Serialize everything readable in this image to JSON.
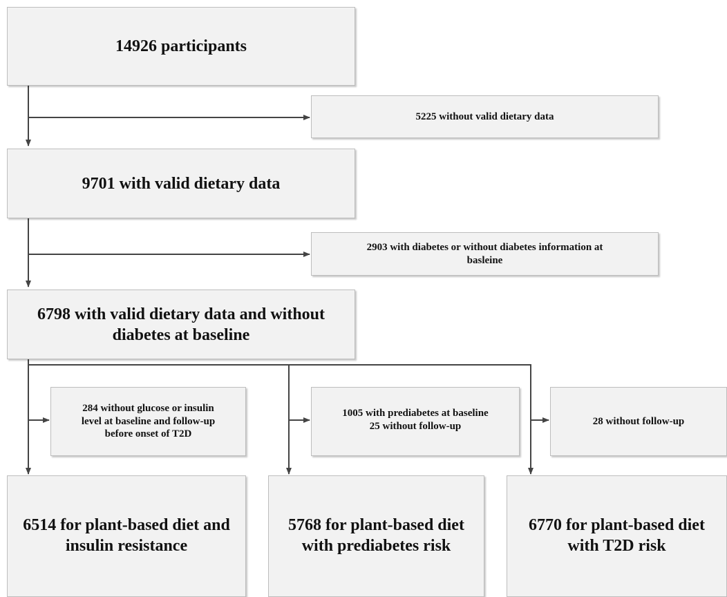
{
  "boxes": {
    "participants": "14926 participants",
    "excluded_diet": "5225 without valid dietary data",
    "valid_diet": "9701 with valid dietary data",
    "excluded_diabetes": "2903 with diabetes or without diabetes information at\nbasleine",
    "no_diabetes": "6798  with valid dietary data and without\ndiabetes at baseline",
    "excluded_glucose": "284 without glucose or insulin\nlevel at baseline and follow-up\nbefore onset of T2D",
    "excluded_prediabetes": "1005 with prediabetes at baseline\n25 without follow-up",
    "excluded_followup": "28 without follow-up",
    "final_insulin": "6514 for plant-based diet and\ninsulin resistance",
    "final_prediabetes": "5768 for plant-based diet\nwith prediabetes risk",
    "final_t2d": "6770 for plant-based diet\nwith T2D risk"
  }
}
